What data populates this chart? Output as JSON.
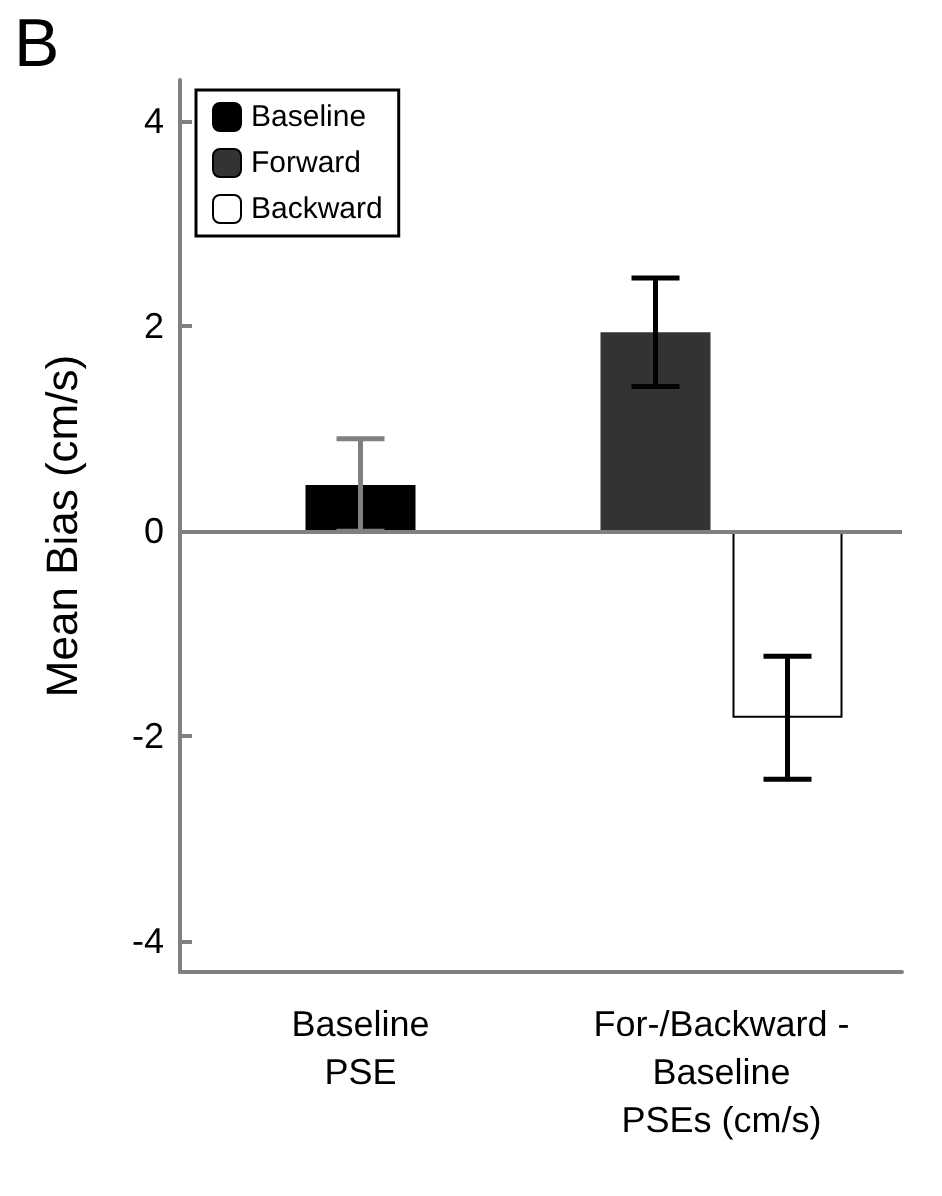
{
  "chart_data": {
    "type": "bar",
    "title": "B",
    "ylabel": "Mean Bias (cm/s)",
    "categories": [
      "Baseline\nPSE",
      "For-/Backward -\nBaseline\nPSEs (cm/s)"
    ],
    "series": [
      {
        "name": "Baseline",
        "color": "#000000",
        "values": [
          0.45,
          null
        ],
        "errors": [
          0.45,
          null
        ]
      },
      {
        "name": "Forward",
        "color": "#333333",
        "values": [
          null,
          1.94
        ],
        "errors": [
          null,
          0.53
        ]
      },
      {
        "name": "Backward",
        "color": "#ffffff",
        "values": [
          null,
          -1.82
        ],
        "errors": [
          null,
          0.6
        ]
      }
    ],
    "ylim": [
      -4.3,
      4.4
    ],
    "yticks": [
      -4,
      -2,
      0,
      2,
      4
    ],
    "grid": false,
    "legend": "top left",
    "ref_lines": [
      {
        "axis": "y",
        "value": 0
      }
    ]
  }
}
